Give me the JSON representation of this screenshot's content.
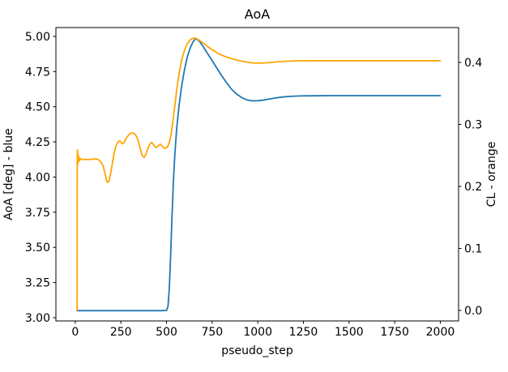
{
  "window": {
    "kind": "chart-figure",
    "background": "#ffffff"
  },
  "chart_data": {
    "type": "line",
    "title": "AoA",
    "xlabel": "pseudo_step",
    "ylabel_left": "AoA [deg] - blue",
    "ylabel_right": "CL - orange",
    "grid": false,
    "legend": "none (series identified by axis label colors)",
    "xlim": [
      -106,
      2100
    ],
    "ylim_left": [
      2.977,
      5.063
    ],
    "ylim_right": [
      -0.017,
      0.4562
    ],
    "xticks": {
      "values": [
        0,
        250,
        500,
        750,
        1000,
        1250,
        1500,
        1750,
        2000
      ],
      "labels": [
        "0",
        "250",
        "500",
        "750",
        "1000",
        "1250",
        "1500",
        "1750",
        "2000"
      ]
    },
    "yticks_left": {
      "values": [
        3.0,
        3.25,
        3.5,
        3.75,
        4.0,
        4.25,
        4.5,
        4.75,
        5.0
      ],
      "labels": [
        "3.00",
        "3.25",
        "3.50",
        "3.75",
        "4.00",
        "4.25",
        "4.50",
        "4.75",
        "5.00"
      ]
    },
    "yticks_right": {
      "values": [
        0.0,
        0.1,
        0.2,
        0.3,
        0.4
      ],
      "labels": [
        "0.0",
        "0.1",
        "0.2",
        "0.3",
        "0.4"
      ]
    },
    "series": [
      {
        "name": "AoA [deg]",
        "axis": "left",
        "color": "#1f77b4",
        "points": [
          [
            10,
            3.05
          ],
          [
            100,
            3.05
          ],
          [
            200,
            3.05
          ],
          [
            300,
            3.05
          ],
          [
            400,
            3.05
          ],
          [
            470,
            3.05
          ],
          [
            500,
            3.052
          ],
          [
            508,
            3.08
          ],
          [
            515,
            3.2
          ],
          [
            522,
            3.42
          ],
          [
            530,
            3.72
          ],
          [
            538,
            3.98
          ],
          [
            546,
            4.17
          ],
          [
            556,
            4.35
          ],
          [
            568,
            4.5
          ],
          [
            582,
            4.64
          ],
          [
            598,
            4.76
          ],
          [
            615,
            4.86
          ],
          [
            632,
            4.925
          ],
          [
            645,
            4.962
          ],
          [
            658,
            4.982
          ],
          [
            670,
            4.978
          ],
          [
            685,
            4.958
          ],
          [
            700,
            4.93
          ],
          [
            720,
            4.888
          ],
          [
            745,
            4.838
          ],
          [
            772,
            4.782
          ],
          [
            800,
            4.725
          ],
          [
            828,
            4.672
          ],
          [
            856,
            4.625
          ],
          [
            884,
            4.59
          ],
          [
            912,
            4.565
          ],
          [
            940,
            4.549
          ],
          [
            968,
            4.542
          ],
          [
            996,
            4.542
          ],
          [
            1030,
            4.547
          ],
          [
            1065,
            4.555
          ],
          [
            1100,
            4.563
          ],
          [
            1140,
            4.57
          ],
          [
            1180,
            4.574
          ],
          [
            1230,
            4.577
          ],
          [
            1300,
            4.578
          ],
          [
            1400,
            4.579
          ],
          [
            1500,
            4.579
          ],
          [
            1600,
            4.579
          ],
          [
            1700,
            4.579
          ],
          [
            1800,
            4.579
          ],
          [
            1900,
            4.579
          ],
          [
            2000,
            4.579
          ]
        ]
      },
      {
        "name": "CL",
        "axis": "right",
        "color": "#ffa500",
        "points": [
          [
            10,
            0.0
          ],
          [
            11,
            0.245
          ],
          [
            12,
            0.259
          ],
          [
            14,
            0.236
          ],
          [
            17,
            0.2505
          ],
          [
            21,
            0.2405
          ],
          [
            26,
            0.2455
          ],
          [
            33,
            0.2435
          ],
          [
            45,
            0.2435
          ],
          [
            60,
            0.2435
          ],
          [
            80,
            0.2435
          ],
          [
            100,
            0.244
          ],
          [
            115,
            0.2445
          ],
          [
            130,
            0.2425
          ],
          [
            143,
            0.2385
          ],
          [
            154,
            0.2315
          ],
          [
            164,
            0.2195
          ],
          [
            172,
            0.2085
          ],
          [
            178,
            0.2065
          ],
          [
            184,
            0.2085
          ],
          [
            192,
            0.2185
          ],
          [
            202,
            0.2345
          ],
          [
            212,
            0.2525
          ],
          [
            222,
            0.2645
          ],
          [
            232,
            0.271
          ],
          [
            241,
            0.2735
          ],
          [
            250,
            0.2715
          ],
          [
            258,
            0.2685
          ],
          [
            267,
            0.2705
          ],
          [
            279,
            0.2775
          ],
          [
            291,
            0.2825
          ],
          [
            303,
            0.2855
          ],
          [
            316,
            0.2865
          ],
          [
            329,
            0.284
          ],
          [
            341,
            0.277
          ],
          [
            353,
            0.265
          ],
          [
            363,
            0.253
          ],
          [
            371,
            0.248
          ],
          [
            378,
            0.247
          ],
          [
            386,
            0.251
          ],
          [
            396,
            0.2595
          ],
          [
            406,
            0.2665
          ],
          [
            415,
            0.2705
          ],
          [
            423,
            0.27
          ],
          [
            431,
            0.266
          ],
          [
            440,
            0.263
          ],
          [
            449,
            0.2635
          ],
          [
            458,
            0.2665
          ],
          [
            466,
            0.268
          ],
          [
            477,
            0.2645
          ],
          [
            488,
            0.2615
          ],
          [
            497,
            0.262
          ],
          [
            506,
            0.264
          ],
          [
            515,
            0.2705
          ],
          [
            524,
            0.2825
          ],
          [
            534,
            0.303
          ],
          [
            545,
            0.329
          ],
          [
            557,
            0.358
          ],
          [
            570,
            0.384
          ],
          [
            584,
            0.405
          ],
          [
            598,
            0.419
          ],
          [
            612,
            0.429
          ],
          [
            626,
            0.435
          ],
          [
            638,
            0.4382
          ],
          [
            648,
            0.4392
          ],
          [
            660,
            0.4388
          ],
          [
            674,
            0.4368
          ],
          [
            690,
            0.4335
          ],
          [
            708,
            0.4295
          ],
          [
            728,
            0.425
          ],
          [
            750,
            0.4205
          ],
          [
            775,
            0.4158
          ],
          [
            800,
            0.412
          ],
          [
            830,
            0.4085
          ],
          [
            860,
            0.4058
          ],
          [
            890,
            0.4035
          ],
          [
            920,
            0.4015
          ],
          [
            950,
            0.4
          ],
          [
            980,
            0.399
          ],
          [
            1010,
            0.3988
          ],
          [
            1045,
            0.3993
          ],
          [
            1080,
            0.4002
          ],
          [
            1115,
            0.4011
          ],
          [
            1150,
            0.4018
          ],
          [
            1190,
            0.4023
          ],
          [
            1240,
            0.4026
          ],
          [
            1300,
            0.4027
          ],
          [
            1400,
            0.4027
          ],
          [
            1500,
            0.4027
          ],
          [
            1600,
            0.4027
          ],
          [
            1700,
            0.4027
          ],
          [
            1800,
            0.4027
          ],
          [
            1900,
            0.4027
          ],
          [
            2000,
            0.4027
          ]
        ]
      }
    ]
  }
}
